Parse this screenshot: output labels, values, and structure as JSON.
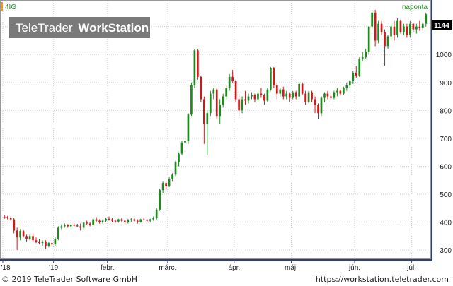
{
  "chart_data": {
    "type": "candlestick",
    "symbol": "4IG",
    "interval_label": "naponta",
    "watermark": {
      "brand_light": "TeleTrader",
      "brand_bold": "WorkStation"
    },
    "last_price_label": "1144",
    "y_ticks": [
      300,
      400,
      500,
      600,
      700,
      800,
      900,
      1000,
      1100
    ],
    "ylim": [
      280,
      1175
    ],
    "x_ticks": [
      {
        "label": "'18",
        "index": 0
      },
      {
        "label": "'19",
        "index": 16
      },
      {
        "label": "febr.",
        "index": 33
      },
      {
        "label": "márc.",
        "index": 52
      },
      {
        "label": "ápr.",
        "index": 73
      },
      {
        "label": "máj.",
        "index": 91
      },
      {
        "label": "jún.",
        "index": 111
      },
      {
        "label": "júl.",
        "index": 129
      }
    ],
    "candles": [
      [
        420,
        425,
        412,
        418
      ],
      [
        418,
        422,
        410,
        415
      ],
      [
        415,
        420,
        405,
        410
      ],
      [
        410,
        415,
        360,
        370
      ],
      [
        370,
        380,
        300,
        345
      ],
      [
        345,
        375,
        335,
        368
      ],
      [
        368,
        372,
        345,
        350
      ],
      [
        350,
        355,
        330,
        340
      ],
      [
        340,
        355,
        335,
        350
      ],
      [
        350,
        360,
        330,
        335
      ],
      [
        335,
        345,
        325,
        330
      ],
      [
        330,
        340,
        320,
        325
      ],
      [
        325,
        335,
        315,
        330
      ],
      [
        330,
        335,
        305,
        315
      ],
      [
        315,
        330,
        310,
        325
      ],
      [
        325,
        330,
        315,
        320
      ],
      [
        320,
        345,
        315,
        340
      ],
      [
        340,
        385,
        335,
        380
      ],
      [
        380,
        392,
        375,
        385
      ],
      [
        385,
        395,
        380,
        390
      ],
      [
        390,
        393,
        380,
        385
      ],
      [
        385,
        392,
        380,
        390
      ],
      [
        390,
        395,
        385,
        388
      ],
      [
        388,
        394,
        382,
        385
      ],
      [
        385,
        395,
        370,
        380
      ],
      [
        380,
        400,
        375,
        398
      ],
      [
        398,
        405,
        390,
        395
      ],
      [
        395,
        400,
        385,
        390
      ],
      [
        390,
        415,
        385,
        410
      ],
      [
        410,
        418,
        400,
        405
      ],
      [
        405,
        410,
        395,
        400
      ],
      [
        400,
        410,
        395,
        405
      ],
      [
        405,
        415,
        400,
        412
      ],
      [
        412,
        420,
        405,
        410
      ],
      [
        410,
        414,
        400,
        405
      ],
      [
        405,
        410,
        398,
        402
      ],
      [
        402,
        412,
        398,
        410
      ],
      [
        410,
        415,
        400,
        405
      ],
      [
        405,
        408,
        395,
        400
      ],
      [
        400,
        412,
        395,
        408
      ],
      [
        408,
        415,
        400,
        410
      ],
      [
        410,
        414,
        402,
        405
      ],
      [
        405,
        410,
        395,
        400
      ],
      [
        400,
        412,
        398,
        410
      ],
      [
        410,
        415,
        405,
        408
      ],
      [
        408,
        412,
        400,
        405
      ],
      [
        405,
        412,
        400,
        410
      ],
      [
        410,
        420,
        405,
        415
      ],
      [
        415,
        450,
        410,
        445
      ],
      [
        445,
        520,
        440,
        515
      ],
      [
        515,
        545,
        505,
        540
      ],
      [
        540,
        545,
        520,
        530
      ],
      [
        530,
        560,
        525,
        555
      ],
      [
        555,
        575,
        545,
        570
      ],
      [
        570,
        620,
        565,
        615
      ],
      [
        615,
        650,
        600,
        645
      ],
      [
        645,
        690,
        640,
        685
      ],
      [
        685,
        700,
        660,
        690
      ],
      [
        690,
        790,
        680,
        785
      ],
      [
        785,
        900,
        780,
        890
      ],
      [
        890,
        1020,
        880,
        1015
      ],
      [
        1015,
        1020,
        910,
        920
      ],
      [
        920,
        925,
        830,
        840
      ],
      [
        840,
        850,
        680,
        750
      ],
      [
        750,
        800,
        640,
        790
      ],
      [
        790,
        870,
        780,
        860
      ],
      [
        860,
        880,
        840,
        875
      ],
      [
        875,
        880,
        770,
        780
      ],
      [
        780,
        840,
        750,
        820
      ],
      [
        820,
        860,
        810,
        850
      ],
      [
        850,
        890,
        840,
        880
      ],
      [
        880,
        930,
        870,
        920
      ],
      [
        920,
        945,
        900,
        905
      ],
      [
        905,
        910,
        830,
        840
      ],
      [
        840,
        860,
        780,
        800
      ],
      [
        800,
        850,
        790,
        840
      ],
      [
        840,
        870,
        820,
        835
      ],
      [
        835,
        860,
        825,
        850
      ],
      [
        850,
        865,
        840,
        855
      ],
      [
        855,
        860,
        830,
        840
      ],
      [
        840,
        870,
        830,
        860
      ],
      [
        860,
        880,
        845,
        855
      ],
      [
        855,
        860,
        820,
        835
      ],
      [
        835,
        880,
        830,
        875
      ],
      [
        875,
        955,
        870,
        950
      ],
      [
        950,
        955,
        880,
        890
      ],
      [
        890,
        900,
        840,
        860
      ],
      [
        860,
        880,
        850,
        875
      ],
      [
        875,
        885,
        840,
        850
      ],
      [
        850,
        870,
        840,
        860
      ],
      [
        860,
        865,
        830,
        845
      ],
      [
        845,
        870,
        840,
        865
      ],
      [
        865,
        870,
        840,
        850
      ],
      [
        850,
        900,
        845,
        895
      ],
      [
        895,
        900,
        855,
        860
      ],
      [
        860,
        870,
        820,
        830
      ],
      [
        830,
        870,
        825,
        865
      ],
      [
        865,
        870,
        830,
        840
      ],
      [
        840,
        850,
        790,
        820
      ],
      [
        820,
        825,
        770,
        790
      ],
      [
        790,
        850,
        780,
        845
      ],
      [
        845,
        865,
        830,
        860
      ],
      [
        860,
        870,
        840,
        850
      ],
      [
        850,
        860,
        830,
        845
      ],
      [
        845,
        870,
        840,
        865
      ],
      [
        865,
        880,
        850,
        870
      ],
      [
        870,
        875,
        855,
        860
      ],
      [
        860,
        885,
        855,
        880
      ],
      [
        880,
        900,
        870,
        890
      ],
      [
        890,
        910,
        880,
        905
      ],
      [
        905,
        940,
        895,
        935
      ],
      [
        935,
        960,
        915,
        925
      ],
      [
        925,
        990,
        920,
        985
      ],
      [
        985,
        1010,
        975,
        990
      ],
      [
        990,
        1020,
        985,
        1010
      ],
      [
        1010,
        1100,
        1000,
        1100
      ],
      [
        1100,
        1160,
        1090,
        1150
      ],
      [
        1150,
        1160,
        1030,
        1050
      ],
      [
        1050,
        1120,
        1040,
        1110
      ],
      [
        1110,
        1120,
        1070,
        1080
      ],
      [
        1080,
        1090,
        960,
        1030
      ],
      [
        1030,
        1070,
        1020,
        1065
      ],
      [
        1065,
        1110,
        1055,
        1100
      ],
      [
        1100,
        1120,
        1050,
        1070
      ],
      [
        1070,
        1130,
        1060,
        1120
      ],
      [
        1120,
        1125,
        1075,
        1080
      ],
      [
        1080,
        1110,
        1070,
        1100
      ],
      [
        1100,
        1110,
        1060,
        1070
      ],
      [
        1070,
        1120,
        1060,
        1110
      ],
      [
        1110,
        1115,
        1080,
        1090
      ],
      [
        1090,
        1110,
        1075,
        1100
      ],
      [
        1100,
        1120,
        1085,
        1095
      ],
      [
        1095,
        1115,
        1085,
        1110
      ],
      [
        1110,
        1150,
        1100,
        1144
      ]
    ]
  },
  "footer": {
    "copyright": "© 2019 TeleTrader Software GmbH",
    "url": "https://workstation.teletrader.com"
  }
}
